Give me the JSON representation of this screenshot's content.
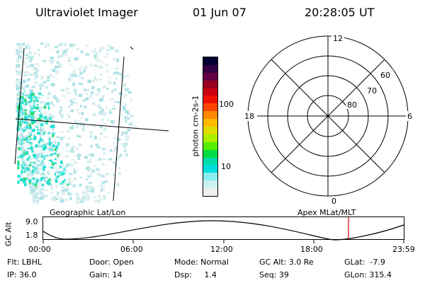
{
  "header": {
    "instrument": "Ultraviolet Imager",
    "date": "01 Jun 07",
    "time": "20:28:05 UT"
  },
  "colorbar": {
    "label": "photon cm-2s-1",
    "ticks": [
      "100",
      "10"
    ],
    "colors": [
      "#000033",
      "#330044",
      "#660044",
      "#990022",
      "#cc0011",
      "#ee1100",
      "#ff4400",
      "#ff8800",
      "#ffbb00",
      "#dddd00",
      "#aaee00",
      "#55ee00",
      "#00dd44",
      "#00ddaa",
      "#00dddd",
      "#88eeee",
      "#ccf2f2",
      "#eeeeee"
    ]
  },
  "polar": {
    "mlt_labels": {
      "top": "12",
      "left": "18",
      "right": "6",
      "bottom": "0"
    },
    "lat_labels": [
      "60",
      "70",
      "80"
    ]
  },
  "altplot": {
    "left_title": "Geographic Lat/Lon",
    "right_title": "Apex  MLat/MLT",
    "ylabel": "GC Alt",
    "yticks": [
      "9.0",
      "1.8"
    ],
    "xticks": [
      "00:00",
      "06:00",
      "12:00",
      "18:00",
      "23:59"
    ],
    "marker_color": "#dd0000"
  },
  "info": {
    "row1": [
      "Flt: LBHL",
      "Door: Open",
      "Mode: Normal",
      "GC Alt: 3.0 Re",
      "GLat:  -7.9"
    ],
    "row2": [
      "IP: 36.0",
      "Gain: 14",
      "Dsp:     1.4",
      "Seq: 39",
      "GLon: 315.4"
    ]
  }
}
